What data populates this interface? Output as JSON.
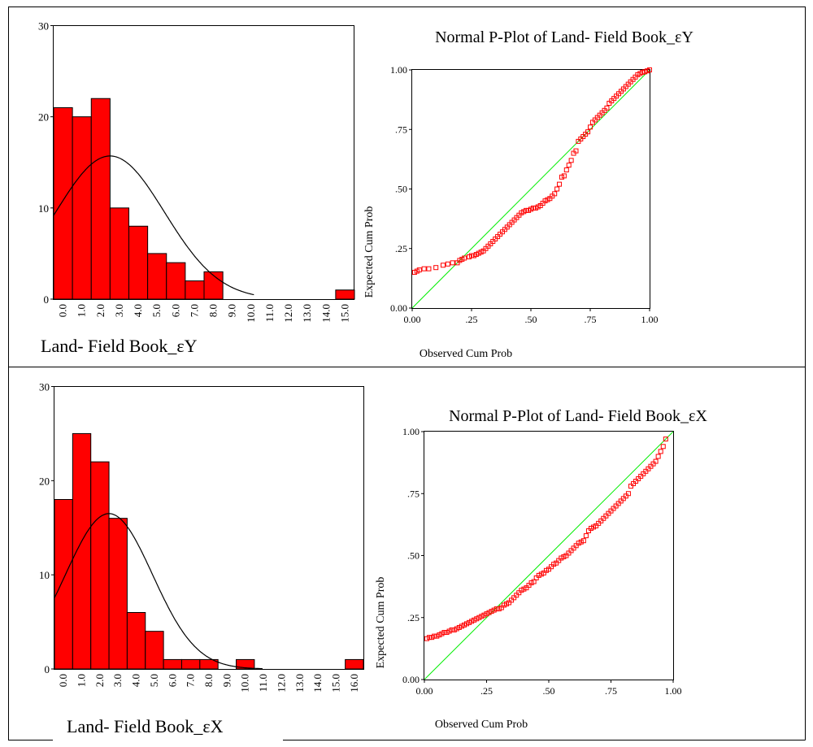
{
  "colors": {
    "bar_fill": "#ff0000",
    "bar_stroke": "#000000",
    "curve": "#000000",
    "reference_line": "#00ee00",
    "marker": "#ff0000",
    "frame": "#000000"
  },
  "chart_data": [
    {
      "type": "bar",
      "role": "histogram-with-normal-curve",
      "title": "",
      "xlabel": "Land- Field Book_εY",
      "ylabel": "",
      "categories": [
        "0.0",
        "1.0",
        "2.0",
        "3.0",
        "4.0",
        "5.0",
        "6.0",
        "7.0",
        "8.0",
        "9.0",
        "10.0",
        "11.0",
        "12.0",
        "13.0",
        "14.0",
        "15.0"
      ],
      "values": [
        21,
        20,
        22,
        10,
        8,
        5,
        4,
        2,
        3,
        0,
        0,
        0,
        0,
        0,
        0,
        1
      ],
      "ylim": [
        0,
        30
      ],
      "yticks": [
        0,
        10,
        20,
        30
      ],
      "normal_curve": {
        "mean": 2.5,
        "sd": 2.9,
        "peak": 15.7,
        "xmax": 10.2
      }
    },
    {
      "type": "scatter",
      "role": "normal-p-plot",
      "title": "Normal P-Plot of Land- Field Book_εY",
      "xlabel": "Observed Cum Prob",
      "ylabel": "Expected Cum Prob",
      "xlim": [
        0,
        1
      ],
      "ylim": [
        0,
        1
      ],
      "xticks": [
        "0.00",
        ".25",
        ".50",
        ".75",
        "1.00"
      ],
      "yticks": [
        "0.00",
        ".25",
        ".50",
        ".75",
        "1.00"
      ],
      "reference_line": [
        [
          0,
          0
        ],
        [
          1,
          1
        ]
      ],
      "points_x": [
        0.01,
        0.02,
        0.03,
        0.05,
        0.07,
        0.1,
        0.13,
        0.15,
        0.17,
        0.19,
        0.2,
        0.21,
        0.22,
        0.24,
        0.25,
        0.26,
        0.27,
        0.28,
        0.29,
        0.3,
        0.31,
        0.32,
        0.33,
        0.34,
        0.35,
        0.36,
        0.37,
        0.38,
        0.39,
        0.4,
        0.41,
        0.42,
        0.43,
        0.44,
        0.45,
        0.46,
        0.47,
        0.48,
        0.49,
        0.5,
        0.51,
        0.52,
        0.53,
        0.54,
        0.55,
        0.56,
        0.57,
        0.58,
        0.59,
        0.6,
        0.61,
        0.62,
        0.63,
        0.64,
        0.65,
        0.66,
        0.67,
        0.68,
        0.69,
        0.7,
        0.71,
        0.72,
        0.73,
        0.74,
        0.75,
        0.76,
        0.77,
        0.78,
        0.79,
        0.8,
        0.81,
        0.82,
        0.83,
        0.84,
        0.85,
        0.86,
        0.87,
        0.88,
        0.89,
        0.9,
        0.91,
        0.92,
        0.93,
        0.94,
        0.95,
        0.96,
        0.97,
        0.98,
        0.99,
        1.0
      ],
      "points_y": [
        0.15,
        0.155,
        0.16,
        0.165,
        0.165,
        0.17,
        0.18,
        0.185,
        0.19,
        0.19,
        0.2,
        0.205,
        0.21,
        0.215,
        0.22,
        0.22,
        0.225,
        0.23,
        0.235,
        0.24,
        0.25,
        0.26,
        0.27,
        0.28,
        0.29,
        0.3,
        0.31,
        0.32,
        0.33,
        0.34,
        0.35,
        0.36,
        0.37,
        0.38,
        0.39,
        0.4,
        0.405,
        0.41,
        0.41,
        0.415,
        0.42,
        0.42,
        0.425,
        0.43,
        0.44,
        0.45,
        0.455,
        0.46,
        0.47,
        0.48,
        0.5,
        0.52,
        0.55,
        0.555,
        0.58,
        0.6,
        0.62,
        0.65,
        0.66,
        0.7,
        0.71,
        0.72,
        0.73,
        0.74,
        0.76,
        0.78,
        0.79,
        0.8,
        0.81,
        0.82,
        0.83,
        0.84,
        0.86,
        0.87,
        0.88,
        0.89,
        0.9,
        0.91,
        0.92,
        0.93,
        0.94,
        0.95,
        0.96,
        0.97,
        0.98,
        0.985,
        0.99,
        0.992,
        0.996,
        1.0
      ]
    },
    {
      "type": "bar",
      "role": "histogram-with-normal-curve",
      "title": "",
      "xlabel": "Land- Field Book_εX",
      "ylabel": "",
      "categories": [
        "0.0",
        "1.0",
        "2.0",
        "3.0",
        "4.0",
        "5.0",
        "6.0",
        "7.0",
        "8.0",
        "9.0",
        "10.0",
        "11.0",
        "12.0",
        "13.0",
        "14.0",
        "15.0",
        "16.0"
      ],
      "values": [
        18,
        25,
        22,
        16,
        6,
        4,
        1,
        1,
        1,
        0,
        1,
        0,
        0,
        0,
        0,
        0,
        1
      ],
      "ylim": [
        0,
        30
      ],
      "yticks": [
        0,
        10,
        20,
        30
      ],
      "normal_curve": {
        "mean": 2.5,
        "sd": 2.4,
        "peak": 16.5,
        "xmax": 11.0
      }
    },
    {
      "type": "scatter",
      "role": "normal-p-plot",
      "title": "Normal P-Plot of Land- Field Book_εX",
      "xlabel": "Observed Cum Prob",
      "ylabel": "Expected Cum Prob",
      "xlim": [
        0,
        1
      ],
      "ylim": [
        0,
        1
      ],
      "xticks": [
        "0.00",
        ".25",
        ".50",
        ".75",
        "1.00"
      ],
      "yticks": [
        "0.00",
        ".25",
        ".50",
        ".75",
        "1.00"
      ],
      "reference_line": [
        [
          0,
          0
        ],
        [
          1,
          1
        ]
      ],
      "points_x": [
        0.01,
        0.02,
        0.03,
        0.04,
        0.05,
        0.06,
        0.07,
        0.08,
        0.09,
        0.1,
        0.11,
        0.12,
        0.13,
        0.14,
        0.15,
        0.16,
        0.17,
        0.18,
        0.19,
        0.2,
        0.21,
        0.22,
        0.23,
        0.24,
        0.25,
        0.26,
        0.27,
        0.28,
        0.29,
        0.3,
        0.31,
        0.32,
        0.33,
        0.34,
        0.35,
        0.36,
        0.37,
        0.38,
        0.39,
        0.4,
        0.41,
        0.42,
        0.43,
        0.44,
        0.45,
        0.46,
        0.47,
        0.48,
        0.49,
        0.5,
        0.51,
        0.52,
        0.53,
        0.54,
        0.55,
        0.56,
        0.57,
        0.58,
        0.59,
        0.6,
        0.61,
        0.62,
        0.63,
        0.64,
        0.65,
        0.66,
        0.67,
        0.68,
        0.69,
        0.7,
        0.71,
        0.72,
        0.73,
        0.74,
        0.75,
        0.76,
        0.77,
        0.78,
        0.79,
        0.8,
        0.81,
        0.82,
        0.83,
        0.84,
        0.85,
        0.86,
        0.87,
        0.88,
        0.89,
        0.9,
        0.91,
        0.92,
        0.93,
        0.94,
        0.95,
        0.96,
        0.97
      ],
      "points_y": [
        0.165,
        0.17,
        0.17,
        0.175,
        0.175,
        0.18,
        0.185,
        0.19,
        0.19,
        0.195,
        0.2,
        0.2,
        0.205,
        0.21,
        0.215,
        0.22,
        0.225,
        0.23,
        0.235,
        0.24,
        0.245,
        0.25,
        0.255,
        0.26,
        0.265,
        0.27,
        0.275,
        0.28,
        0.285,
        0.285,
        0.29,
        0.3,
        0.305,
        0.31,
        0.32,
        0.33,
        0.34,
        0.35,
        0.36,
        0.365,
        0.37,
        0.38,
        0.39,
        0.395,
        0.41,
        0.42,
        0.425,
        0.43,
        0.44,
        0.445,
        0.455,
        0.465,
        0.47,
        0.48,
        0.49,
        0.495,
        0.5,
        0.51,
        0.52,
        0.53,
        0.54,
        0.55,
        0.555,
        0.56,
        0.58,
        0.6,
        0.61,
        0.615,
        0.62,
        0.63,
        0.64,
        0.65,
        0.66,
        0.67,
        0.68,
        0.69,
        0.7,
        0.71,
        0.72,
        0.73,
        0.74,
        0.75,
        0.78,
        0.79,
        0.8,
        0.81,
        0.82,
        0.83,
        0.84,
        0.85,
        0.86,
        0.87,
        0.88,
        0.9,
        0.92,
        0.94,
        0.97
      ]
    }
  ]
}
